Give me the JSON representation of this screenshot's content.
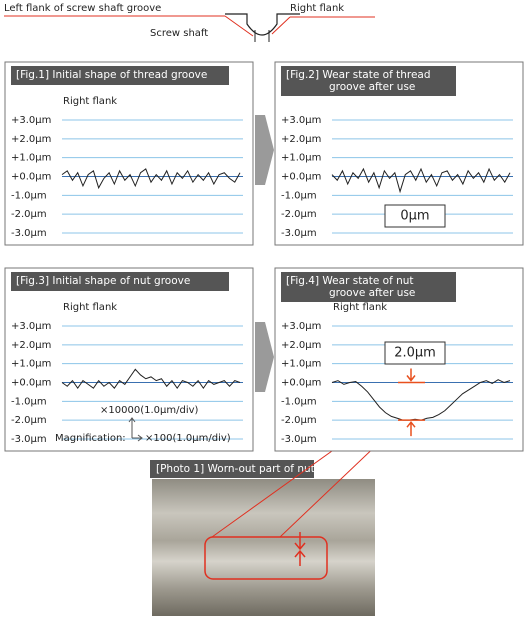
{
  "header": {
    "left_label": "Left flank of screw shaft groove",
    "right_label": "Right flank",
    "shaft_label": "Screw shaft"
  },
  "figures": [
    {
      "title": [
        "[Fig.1] Initial shape of thread groove"
      ],
      "flank": "Right flank",
      "ylim": [
        -3,
        3
      ],
      "yticks": [
        {
          "value": 3,
          "label": "+3.0μm"
        },
        {
          "value": 2,
          "label": "+2.0μm"
        },
        {
          "value": 1,
          "label": "+1.0μm"
        },
        {
          "value": 0,
          "label": "+0.0μm"
        },
        {
          "value": -1,
          "label": "-1.0μm"
        },
        {
          "value": -2,
          "label": "-2.0μm"
        },
        {
          "value": -3,
          "label": "-3.0μm"
        }
      ],
      "profile": [
        0.1,
        0.3,
        -0.2,
        0.2,
        -0.5,
        0.1,
        0.3,
        -0.6,
        -0.1,
        0.2,
        -0.4,
        0.3,
        -0.2,
        0.1,
        -0.5,
        0.2,
        0.4,
        -0.3,
        0.1,
        -0.2,
        0.3,
        -0.4,
        0.2,
        -0.1,
        0.3,
        -0.3,
        0.1,
        -0.2,
        0.2,
        -0.4,
        0.1,
        0.2,
        -0.1,
        -0.3,
        0.2
      ]
    },
    {
      "title": [
        "[Fig.2] Wear state of thread",
        "groove after use"
      ],
      "note": "0μm",
      "ylim": [
        -3,
        3
      ],
      "yticks": [
        {
          "value": 3,
          "label": "+3.0μm"
        },
        {
          "value": 2,
          "label": "+2.0μm"
        },
        {
          "value": 1,
          "label": "+1.0μm"
        },
        {
          "value": 0,
          "label": "+0.0μm"
        },
        {
          "value": -1,
          "label": "-1.0μm"
        },
        {
          "value": -2,
          "label": "-2.0μm"
        },
        {
          "value": -3,
          "label": "-3.0μm"
        }
      ],
      "profile": [
        0.1,
        -0.2,
        0.3,
        -0.4,
        0.2,
        -0.1,
        0.4,
        -0.3,
        0.2,
        -0.6,
        0.3,
        -0.1,
        0.2,
        -0.8,
        0.1,
        0.3,
        -0.2,
        0.4,
        -0.3,
        0.1,
        -0.5,
        0.2,
        0.3,
        -0.2,
        0.1,
        -0.4,
        0.3,
        -0.1,
        0.2,
        -0.3,
        0.4,
        -0.2,
        0.1,
        -0.3,
        0.2
      ]
    },
    {
      "title": [
        "[Fig.3] Initial shape of nut groove"
      ],
      "flank": "Right flank",
      "ylim": [
        -3,
        3
      ],
      "note1": "×10000(1.0μm/div)",
      "note2": "Magnification:",
      "note3": "×100(1.0μm/div)",
      "yticks": [
        {
          "value": 3,
          "label": "+3.0μm"
        },
        {
          "value": 2,
          "label": "+2.0μm"
        },
        {
          "value": 1,
          "label": "+1.0μm"
        },
        {
          "value": 0,
          "label": "+0.0μm"
        },
        {
          "value": -1,
          "label": "-1.0μm"
        },
        {
          "value": -2,
          "label": "-2.0μm"
        },
        {
          "value": -3,
          "label": "-3.0μm"
        }
      ],
      "profile": [
        0,
        -0.2,
        0.1,
        -0.3,
        0.1,
        -0.1,
        -0.3,
        0.1,
        -0.2,
        0,
        -0.3,
        0.1,
        -0.1,
        0.3,
        0.7,
        0.4,
        0.2,
        0.3,
        0.1,
        0.2,
        -0.2,
        0.1,
        -0.3,
        0.1,
        0,
        -0.2,
        0.1,
        -0.3,
        0.1,
        -0.1,
        0,
        0.1,
        -0.2,
        0.1,
        0
      ]
    },
    {
      "title": [
        "[Fig.4] Wear state of nut",
        "groove after use"
      ],
      "flank": "Right flank",
      "note": "2.0μm",
      "ylim": [
        -3,
        3
      ],
      "yticks": [
        {
          "value": 3,
          "label": "+3.0μm"
        },
        {
          "value": 2,
          "label": "+2.0μm"
        },
        {
          "value": 1,
          "label": "+1.0μm"
        },
        {
          "value": 0,
          "label": "+0.0μm"
        },
        {
          "value": -1,
          "label": "-1.0μm"
        },
        {
          "value": -2,
          "label": "-2.0μm"
        },
        {
          "value": -3,
          "label": "-3.0μm"
        }
      ],
      "profile": [
        0,
        0.1,
        -0.1,
        0,
        0.05,
        -0.2,
        -0.5,
        -0.9,
        -1.3,
        -1.6,
        -1.8,
        -1.9,
        -2.0,
        -2.0,
        -1.95,
        -2.0,
        -1.9,
        -1.85,
        -1.7,
        -1.5,
        -1.2,
        -0.9,
        -0.6,
        -0.4,
        -0.2,
        0,
        0.1,
        -0.05,
        0.15,
        0,
        0.1
      ]
    }
  ],
  "photo": {
    "title": "[Photo 1] Worn-out part of nut"
  }
}
